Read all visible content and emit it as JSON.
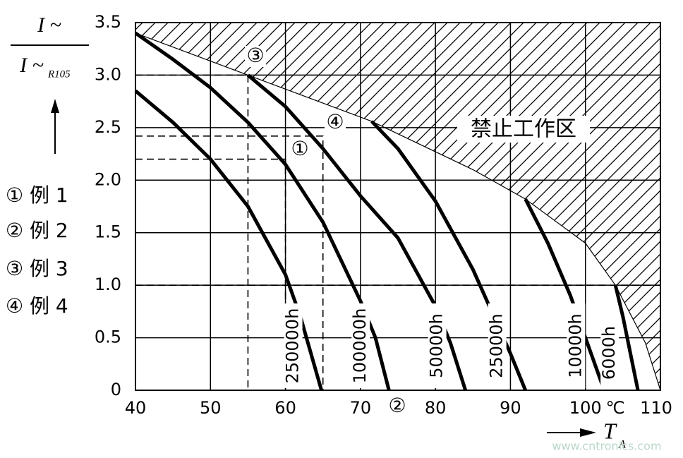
{
  "chart_data": {
    "type": "line",
    "y_axis_label": {
      "numerator": "I ~",
      "denominator": "I ~",
      "denominator_sub": "R105"
    },
    "x_axis_label": {
      "main": "T",
      "sub": "A"
    },
    "x_unit_label": "℃",
    "annotation": "禁止工作区",
    "legend_items": [
      "① 例 1",
      "② 例 2",
      "③ 例 3",
      "④ 例 4"
    ],
    "markers": [
      "①",
      "②",
      "③",
      "④"
    ],
    "watermark": "www.cntronics.com",
    "xlim": [
      40,
      110
    ],
    "ylim": [
      0,
      3.5
    ],
    "xticks": [
      40,
      50,
      60,
      70,
      80,
      90,
      100,
      110
    ],
    "yticks": [
      0,
      0.5,
      {
        "value": 1,
        "label": "1.0"
      },
      1.5,
      {
        "value": 2,
        "label": "2.0"
      },
      2.5,
      {
        "value": 3,
        "label": "3.0"
      },
      3.5
    ],
    "grid": true,
    "series": [
      {
        "name": "250000h",
        "color": "#000000",
        "x": [
          40,
          45,
          50,
          55,
          60,
          62,
          64,
          64.8
        ],
        "values": [
          2.85,
          2.55,
          2.2,
          1.75,
          1.1,
          0.7,
          0.2,
          0
        ]
      },
      {
        "name": "100000h",
        "color": "#000000",
        "x": [
          40,
          45,
          50,
          55,
          60,
          65,
          70,
          72,
          73.8
        ],
        "values": [
          3.4,
          3.15,
          2.88,
          2.55,
          2.15,
          1.6,
          0.85,
          0.5,
          0
        ]
      },
      {
        "name": "50000h",
        "color": "#000000",
        "x": [
          55,
          60,
          65,
          70,
          75,
          80,
          82,
          84
        ],
        "values": [
          3.0,
          2.7,
          2.3,
          1.85,
          1.45,
          0.8,
          0.45,
          0
        ]
      },
      {
        "name": "25000h",
        "color": "#000000",
        "x": [
          71.5,
          75,
          80,
          85,
          90,
          92
        ],
        "values": [
          2.56,
          2.3,
          1.8,
          1.15,
          0.35,
          0
        ]
      },
      {
        "name": "10000h",
        "color": "#000000",
        "x": [
          92,
          95,
          98,
          100,
          102.5
        ],
        "values": [
          1.82,
          1.4,
          0.9,
          0.5,
          0
        ]
      },
      {
        "name": "6000h",
        "color": "#000000",
        "x": [
          104,
          105,
          106,
          107
        ],
        "values": [
          1.0,
          0.7,
          0.35,
          0
        ]
      }
    ],
    "boundary": {
      "color": "#000000",
      "x": [
        40,
        55,
        71.5,
        85,
        92,
        100,
        104,
        108,
        110
      ],
      "values": [
        3.4,
        3.0,
        2.56,
        2.1,
        1.82,
        1.4,
        1.0,
        0.45,
        0
      ]
    },
    "reference_lines": [
      {
        "x": [
          40,
          55,
          55
        ],
        "values": [
          3,
          3,
          0
        ]
      },
      {
        "x": [
          40,
          65,
          65
        ],
        "values": [
          2.42,
          2.42,
          0
        ]
      },
      {
        "x": [
          40,
          60,
          60
        ],
        "values": [
          2.2,
          2.2,
          0
        ]
      },
      {
        "x": [
          40,
          110
        ],
        "values": [
          1,
          1
        ]
      }
    ]
  }
}
